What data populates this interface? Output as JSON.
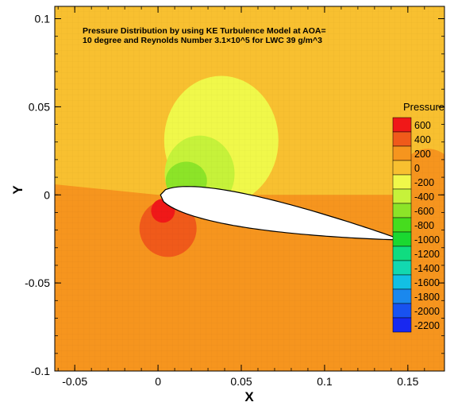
{
  "chart_data": {
    "type": "heatmap",
    "title_lines": [
      "Pressure Distribution by using KE Turbulence Model at AOA=",
      "10 degree and Reynolds Number 3.1×10^5 for LWC 39 g/m^3"
    ],
    "xlabel": "X",
    "ylabel": "Y",
    "xlim": [
      -0.062,
      0.172
    ],
    "ylim": [
      -0.1,
      0.107
    ],
    "x_ticks": [
      -0.05,
      0,
      0.05,
      0.1,
      0.15
    ],
    "x_tick_labels": [
      "-0.05",
      "0",
      "0.05",
      "0.1",
      "0.15"
    ],
    "y_ticks": [
      -0.1,
      -0.05,
      0,
      0.05,
      0.1
    ],
    "y_tick_labels": [
      "-0.1",
      "-0.05",
      "0",
      "0.05",
      "0.1"
    ],
    "legend": {
      "title": "Pressure",
      "placement": "right",
      "levels": [
        600,
        400,
        200,
        0,
        -200,
        -400,
        -600,
        -800,
        -1000,
        -1200,
        -1400,
        -1600,
        -1800,
        -2000,
        -2200
      ],
      "level_labels": [
        "600",
        "400",
        "200",
        "0",
        "-200",
        "-400",
        "-600",
        "-800",
        "-1000",
        "-1200",
        "-1400",
        "-1600",
        "-1800",
        "-2000",
        "-2200"
      ],
      "colors": [
        "#f01818",
        "#f05a1a",
        "#f6951e",
        "#f8c030",
        "#f0f84a",
        "#c6f23a",
        "#8ce428",
        "#46dc1e",
        "#1ad830",
        "#10dc80",
        "#12d8b0",
        "#12c0e4",
        "#1a88ee",
        "#1852f0",
        "#1828f0"
      ]
    },
    "regions": {
      "upper_field_level": "0",
      "lower_field_level": "200",
      "suction_outer_level": "-200",
      "suction_mid_level": "-400",
      "suction_inner_level": "-600",
      "stagnation_outer_level": "400",
      "stagnation_inner_level": "600",
      "trailing_edge_level": "200"
    }
  }
}
